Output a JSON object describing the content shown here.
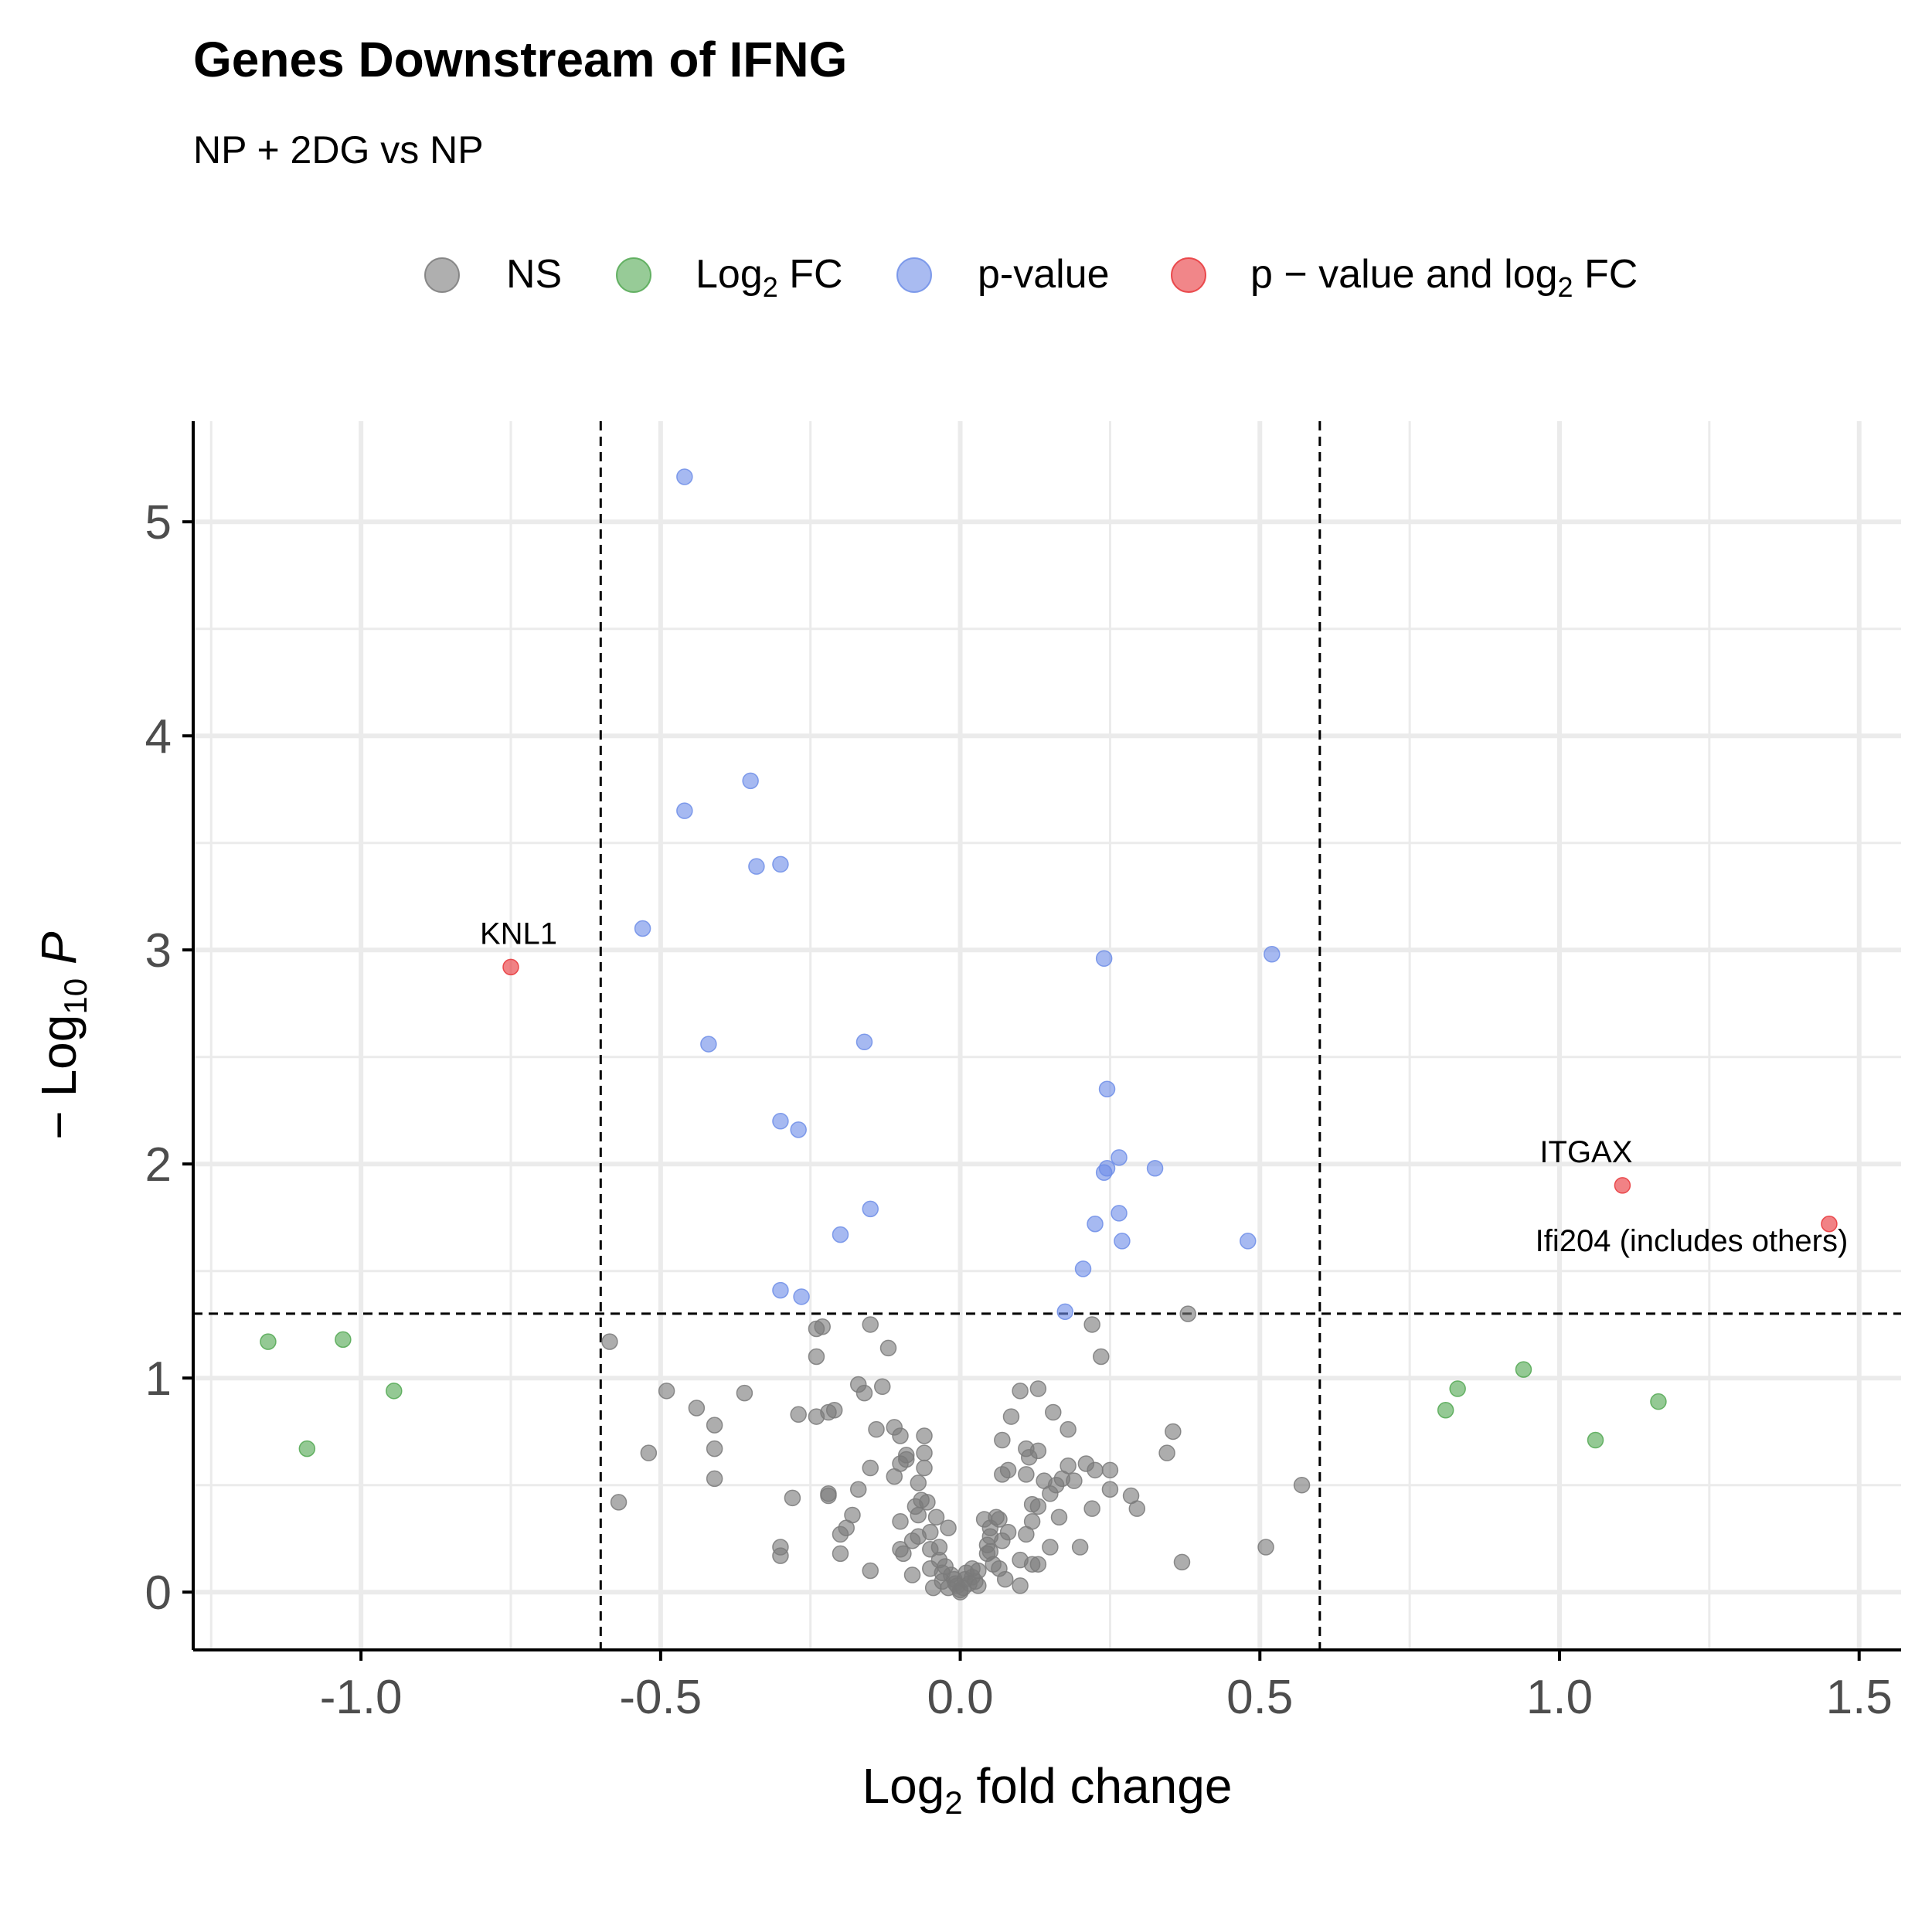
{
  "title": "Genes Downstream of IFNG",
  "subtitle": "NP + 2DG vs NP",
  "colors": {
    "NS": "#7a7a7a",
    "FC": "#52a852",
    "P": "#6f8ee8",
    "FC_P": "#e8363a",
    "grid": "#ebebeb",
    "axis": "#000000",
    "tick_text": "#4d4d4d"
  },
  "legend": {
    "position": "top",
    "items": [
      {
        "key": "NS",
        "label": "NS",
        "sub": "",
        "after": ""
      },
      {
        "key": "FC",
        "label": "Log",
        "sub": "2",
        "after": " FC"
      },
      {
        "key": "P",
        "label": "p-value",
        "sub": "",
        "after": ""
      },
      {
        "key": "FC_P",
        "label": "p − value and log",
        "sub": "2",
        "after": " FC"
      }
    ]
  },
  "chart_data": {
    "type": "scatter",
    "title": "Genes Downstream of IFNG",
    "subtitle": "NP + 2DG vs NP",
    "xlabel": {
      "main": "Log",
      "sub": "2",
      "after": " fold change"
    },
    "ylabel": {
      "pre": "− Log",
      "sub": "10",
      "italic": "P"
    },
    "xlim": [
      -1.28,
      1.57
    ],
    "ylim": [
      -0.27,
      5.47
    ],
    "x_ticks": [
      -1.0,
      -0.5,
      0.0,
      0.5,
      1.0,
      1.5
    ],
    "x_tick_labels": [
      "-1.0",
      "-0.5",
      "0.0",
      "0.5",
      "1.0",
      "1.5"
    ],
    "y_ticks": [
      0,
      1,
      2,
      3,
      4,
      5
    ],
    "y_tick_labels": [
      "0",
      "1",
      "2",
      "3",
      "4",
      "5"
    ],
    "grid": true,
    "cutoffs": {
      "x": [
        -0.6,
        0.6
      ],
      "y": 1.301
    },
    "series": [
      {
        "name": "NS",
        "key": "NS",
        "points": [
          [
            -0.585,
            1.17
          ],
          [
            -0.57,
            0.42
          ],
          [
            -0.52,
            0.65
          ],
          [
            -0.49,
            0.94
          ],
          [
            -0.44,
            0.86
          ],
          [
            -0.41,
            0.78
          ],
          [
            -0.41,
            0.67
          ],
          [
            -0.41,
            0.53
          ],
          [
            -0.36,
            0.93
          ],
          [
            -0.3,
            0.21
          ],
          [
            -0.3,
            0.17
          ],
          [
            -0.28,
            0.44
          ],
          [
            -0.27,
            0.83
          ],
          [
            -0.24,
            0.82
          ],
          [
            -0.24,
            1.1
          ],
          [
            -0.24,
            1.23
          ],
          [
            -0.23,
            1.24
          ],
          [
            -0.22,
            0.84
          ],
          [
            -0.21,
            0.85
          ],
          [
            -0.22,
            0.45
          ],
          [
            -0.22,
            0.46
          ],
          [
            -0.2,
            0.27
          ],
          [
            -0.2,
            0.18
          ],
          [
            -0.19,
            0.3
          ],
          [
            -0.18,
            0.36
          ],
          [
            -0.17,
            0.48
          ],
          [
            -0.17,
            0.97
          ],
          [
            -0.16,
            0.93
          ],
          [
            -0.15,
            1.25
          ],
          [
            -0.14,
            0.76
          ],
          [
            -0.15,
            0.58
          ],
          [
            -0.15,
            0.1
          ],
          [
            -0.13,
            0.96
          ],
          [
            -0.12,
            1.14
          ],
          [
            -0.11,
            0.77
          ],
          [
            -0.11,
            0.54
          ],
          [
            -0.1,
            0.6
          ],
          [
            -0.1,
            0.73
          ],
          [
            -0.1,
            0.33
          ],
          [
            -0.1,
            0.2
          ],
          [
            -0.095,
            0.18
          ],
          [
            -0.09,
            0.64
          ],
          [
            -0.09,
            0.62
          ],
          [
            -0.08,
            0.08
          ],
          [
            -0.08,
            0.24
          ],
          [
            -0.075,
            0.4
          ],
          [
            -0.07,
            0.51
          ],
          [
            -0.07,
            0.36
          ],
          [
            -0.07,
            0.26
          ],
          [
            -0.065,
            0.43
          ],
          [
            -0.06,
            0.73
          ],
          [
            -0.06,
            0.65
          ],
          [
            -0.06,
            0.58
          ],
          [
            -0.055,
            0.42
          ],
          [
            -0.05,
            0.28
          ],
          [
            -0.05,
            0.2
          ],
          [
            -0.05,
            0.11
          ],
          [
            -0.045,
            0.02
          ],
          [
            -0.04,
            0.35
          ],
          [
            -0.035,
            0.21
          ],
          [
            -0.035,
            0.15
          ],
          [
            -0.03,
            0.09
          ],
          [
            -0.03,
            0.05
          ],
          [
            -0.025,
            0.12
          ],
          [
            -0.02,
            0.3
          ],
          [
            -0.02,
            0.02
          ],
          [
            -0.015,
            0.08
          ],
          [
            -0.01,
            0.06
          ],
          [
            -0.008,
            0.04
          ],
          [
            -0.005,
            0.03
          ],
          [
            0.0,
            0.01
          ],
          [
            0.0,
            0.0
          ],
          [
            0.005,
            0.02
          ],
          [
            0.008,
            0.06
          ],
          [
            0.01,
            0.09
          ],
          [
            0.015,
            0.04
          ],
          [
            0.02,
            0.07
          ],
          [
            0.02,
            0.11
          ],
          [
            0.025,
            0.05
          ],
          [
            0.03,
            0.1
          ],
          [
            0.03,
            0.03
          ],
          [
            0.04,
            0.34
          ],
          [
            0.045,
            0.22
          ],
          [
            0.045,
            0.18
          ],
          [
            0.05,
            0.26
          ],
          [
            0.05,
            0.3
          ],
          [
            0.05,
            0.19
          ],
          [
            0.055,
            0.13
          ],
          [
            0.06,
            0.35
          ],
          [
            0.065,
            0.34
          ],
          [
            0.065,
            0.11
          ],
          [
            0.07,
            0.71
          ],
          [
            0.07,
            0.24
          ],
          [
            0.07,
            0.55
          ],
          [
            0.075,
            0.06
          ],
          [
            0.08,
            0.57
          ],
          [
            0.08,
            0.28
          ],
          [
            0.085,
            0.82
          ],
          [
            0.1,
            0.94
          ],
          [
            0.1,
            0.15
          ],
          [
            0.1,
            0.03
          ],
          [
            0.11,
            0.55
          ],
          [
            0.11,
            0.27
          ],
          [
            0.11,
            0.67
          ],
          [
            0.115,
            0.63
          ],
          [
            0.12,
            0.33
          ],
          [
            0.12,
            0.41
          ],
          [
            0.12,
            0.13
          ],
          [
            0.13,
            0.95
          ],
          [
            0.13,
            0.66
          ],
          [
            0.13,
            0.4
          ],
          [
            0.13,
            0.13
          ],
          [
            0.14,
            0.52
          ],
          [
            0.15,
            0.46
          ],
          [
            0.15,
            0.21
          ],
          [
            0.155,
            0.84
          ],
          [
            0.16,
            0.5
          ],
          [
            0.165,
            0.35
          ],
          [
            0.17,
            0.53
          ],
          [
            0.18,
            0.76
          ],
          [
            0.18,
            0.59
          ],
          [
            0.19,
            0.52
          ],
          [
            0.2,
            0.21
          ],
          [
            0.21,
            0.6
          ],
          [
            0.22,
            1.25
          ],
          [
            0.22,
            0.39
          ],
          [
            0.225,
            0.57
          ],
          [
            0.235,
            1.1
          ],
          [
            0.25,
            0.48
          ],
          [
            0.25,
            0.57
          ],
          [
            0.285,
            0.45
          ],
          [
            0.295,
            0.39
          ],
          [
            0.345,
            0.65
          ],
          [
            0.355,
            0.75
          ],
          [
            0.37,
            0.14
          ],
          [
            0.38,
            1.3
          ],
          [
            0.51,
            0.21
          ],
          [
            0.57,
            0.5
          ]
        ]
      },
      {
        "name": "Log2 FC",
        "key": "FC",
        "points": [
          [
            -1.155,
            1.17
          ],
          [
            -1.09,
            0.67
          ],
          [
            -1.03,
            1.18
          ],
          [
            -0.945,
            0.94
          ],
          [
            0.81,
            0.85
          ],
          [
            0.83,
            0.95
          ],
          [
            0.94,
            1.04
          ],
          [
            1.06,
            0.71
          ],
          [
            1.165,
            0.89
          ]
        ]
      },
      {
        "name": "p-value",
        "key": "P",
        "points": [
          [
            -0.46,
            5.21
          ],
          [
            -0.35,
            3.79
          ],
          [
            -0.46,
            3.65
          ],
          [
            -0.34,
            3.39
          ],
          [
            -0.3,
            3.4
          ],
          [
            -0.53,
            3.1
          ],
          [
            -0.42,
            2.56
          ],
          [
            -0.16,
            2.57
          ],
          [
            -0.3,
            2.2
          ],
          [
            -0.27,
            2.16
          ],
          [
            -0.15,
            1.79
          ],
          [
            -0.2,
            1.67
          ],
          [
            -0.3,
            1.41
          ],
          [
            -0.265,
            1.38
          ],
          [
            0.24,
            2.96
          ],
          [
            0.52,
            2.98
          ],
          [
            0.245,
            2.35
          ],
          [
            0.265,
            2.03
          ],
          [
            0.325,
            1.98
          ],
          [
            0.245,
            1.98
          ],
          [
            0.24,
            1.96
          ],
          [
            0.265,
            1.77
          ],
          [
            0.225,
            1.72
          ],
          [
            0.27,
            1.64
          ],
          [
            0.48,
            1.64
          ],
          [
            0.205,
            1.51
          ],
          [
            0.175,
            1.31
          ]
        ]
      },
      {
        "name": "p − value and log2 FC",
        "key": "FC_P",
        "points": [
          [
            -0.75,
            2.92
          ],
          [
            1.105,
            1.9
          ],
          [
            1.45,
            1.72
          ]
        ]
      }
    ],
    "annotations": [
      {
        "text": "KNL1",
        "x": -0.75,
        "y": 2.92,
        "dx": 10,
        "dy": -30
      },
      {
        "text": "ITGAX",
        "x": 1.105,
        "y": 1.9,
        "dx": -47,
        "dy": -30
      },
      {
        "text": "Ifi204 (includes others)",
        "x": 1.45,
        "y": 1.72,
        "dx": -178,
        "dy": 35
      }
    ]
  }
}
